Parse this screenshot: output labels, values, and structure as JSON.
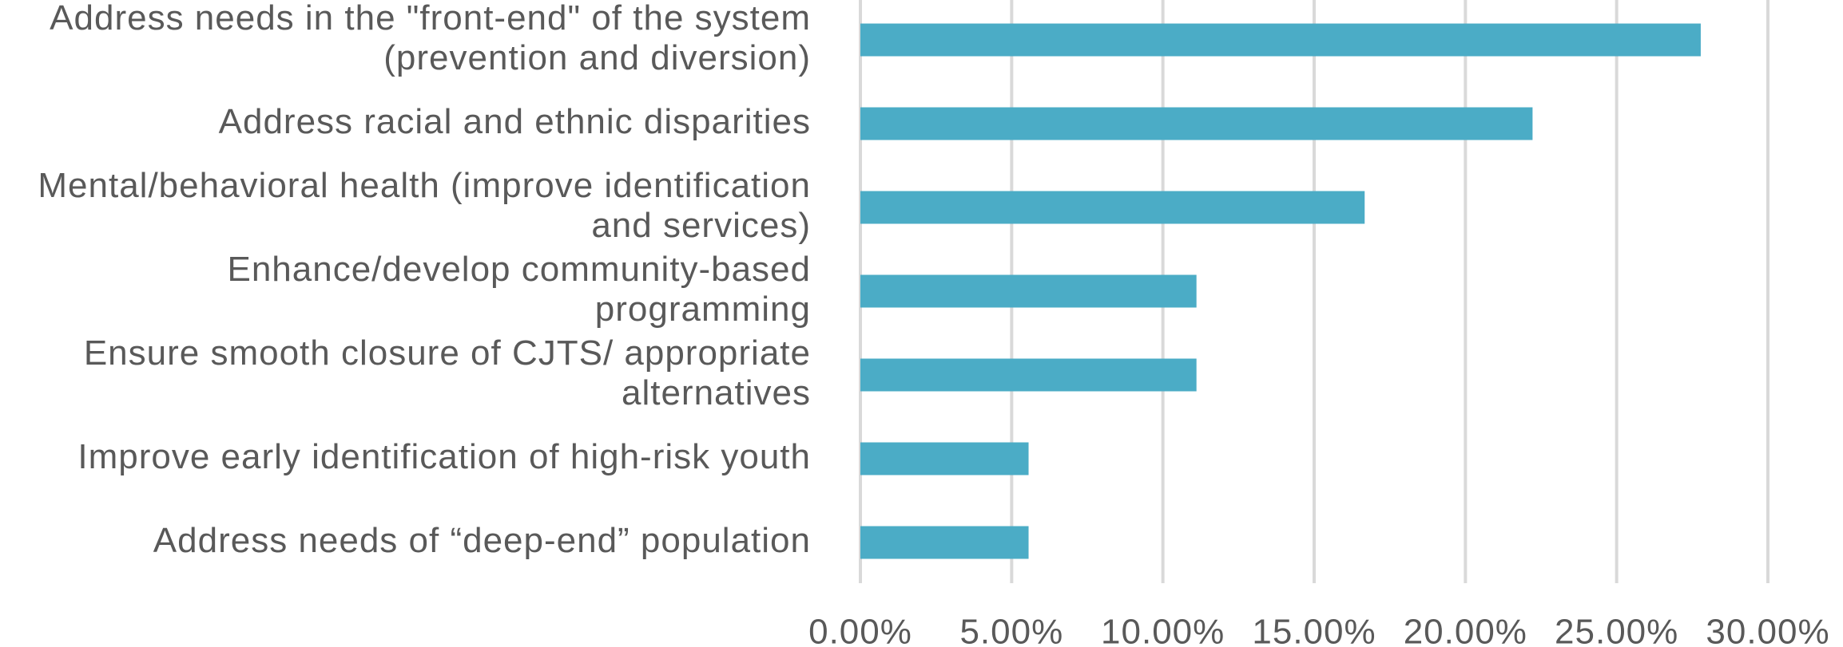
{
  "chart_data": {
    "type": "bar",
    "orientation": "horizontal",
    "categories": [
      "Address needs in the \"front-end\" of the system (prevention and diversion)",
      "Address racial and ethnic disparities",
      "Mental/behavioral health (improve identification and services)",
      "Enhance/develop community-based programming",
      "Ensure smooth closure of CJTS/ appropriate alternatives",
      "Improve early identification of high-risk youth",
      "Address needs of “deep-end” population"
    ],
    "values": [
      27.78,
      22.22,
      16.67,
      11.11,
      11.11,
      5.56,
      5.56
    ],
    "color": "#4bacc6",
    "xlim": [
      0,
      30
    ],
    "xticks": [
      {
        "value": 0,
        "label": "0.00%"
      },
      {
        "value": 5,
        "label": "5.00%"
      },
      {
        "value": 10,
        "label": "10.00%"
      },
      {
        "value": 15,
        "label": "15.00%"
      },
      {
        "value": 20,
        "label": "20.00%"
      },
      {
        "value": 25,
        "label": "25.00%"
      },
      {
        "value": 30,
        "label": "30.00%"
      }
    ],
    "grid": true
  }
}
